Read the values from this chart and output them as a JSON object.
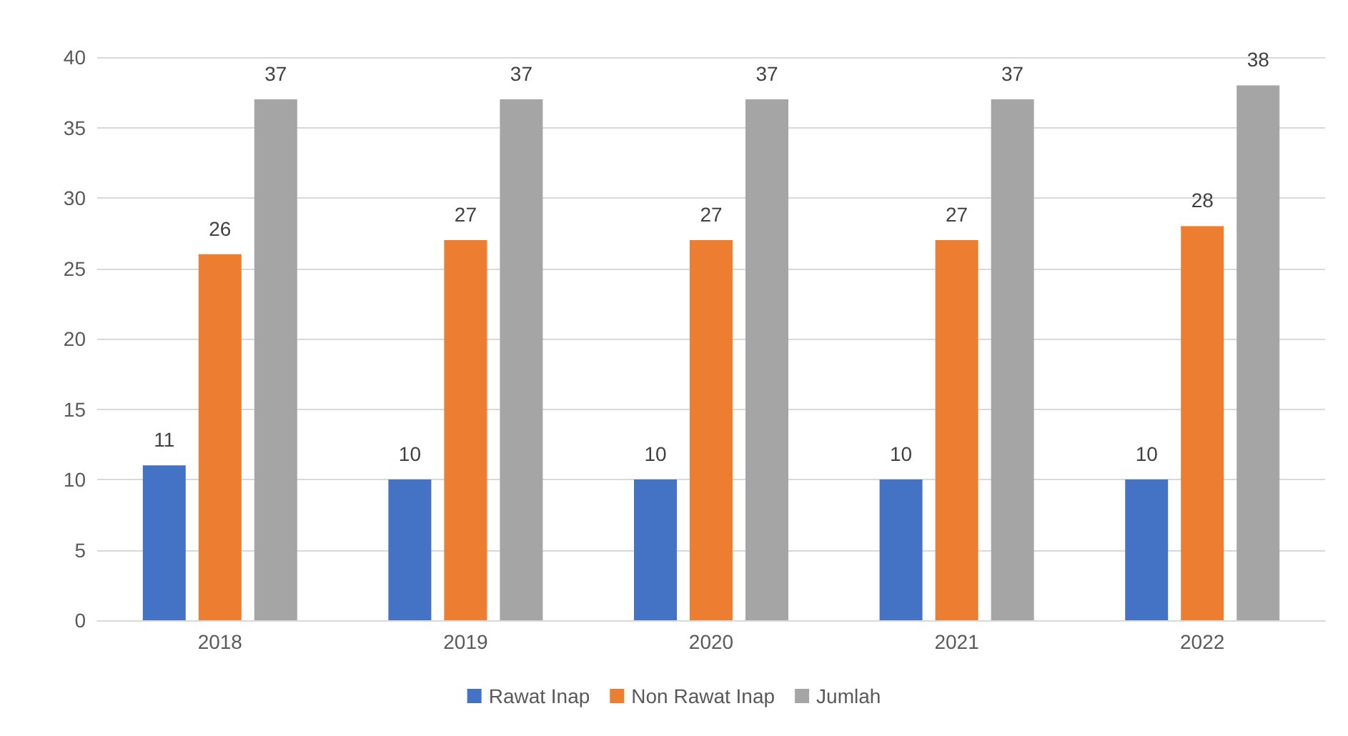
{
  "chart_data": {
    "type": "bar",
    "categories": [
      "2018",
      "2019",
      "2020",
      "2021",
      "2022"
    ],
    "series": [
      {
        "name": "Rawat Inap",
        "color": "#4472c4",
        "values": [
          11,
          10,
          10,
          10,
          10
        ]
      },
      {
        "name": "Non Rawat Inap",
        "color": "#ed7d31",
        "values": [
          26,
          27,
          27,
          27,
          28
        ]
      },
      {
        "name": "Jumlah",
        "color": "#a5a5a5",
        "values": [
          37,
          37,
          37,
          37,
          38
        ]
      }
    ],
    "ylim": [
      0,
      40
    ],
    "yticks": [
      0,
      5,
      10,
      15,
      20,
      25,
      30,
      35,
      40
    ],
    "grid": "y",
    "legend": "bottom",
    "data_labels": true
  }
}
